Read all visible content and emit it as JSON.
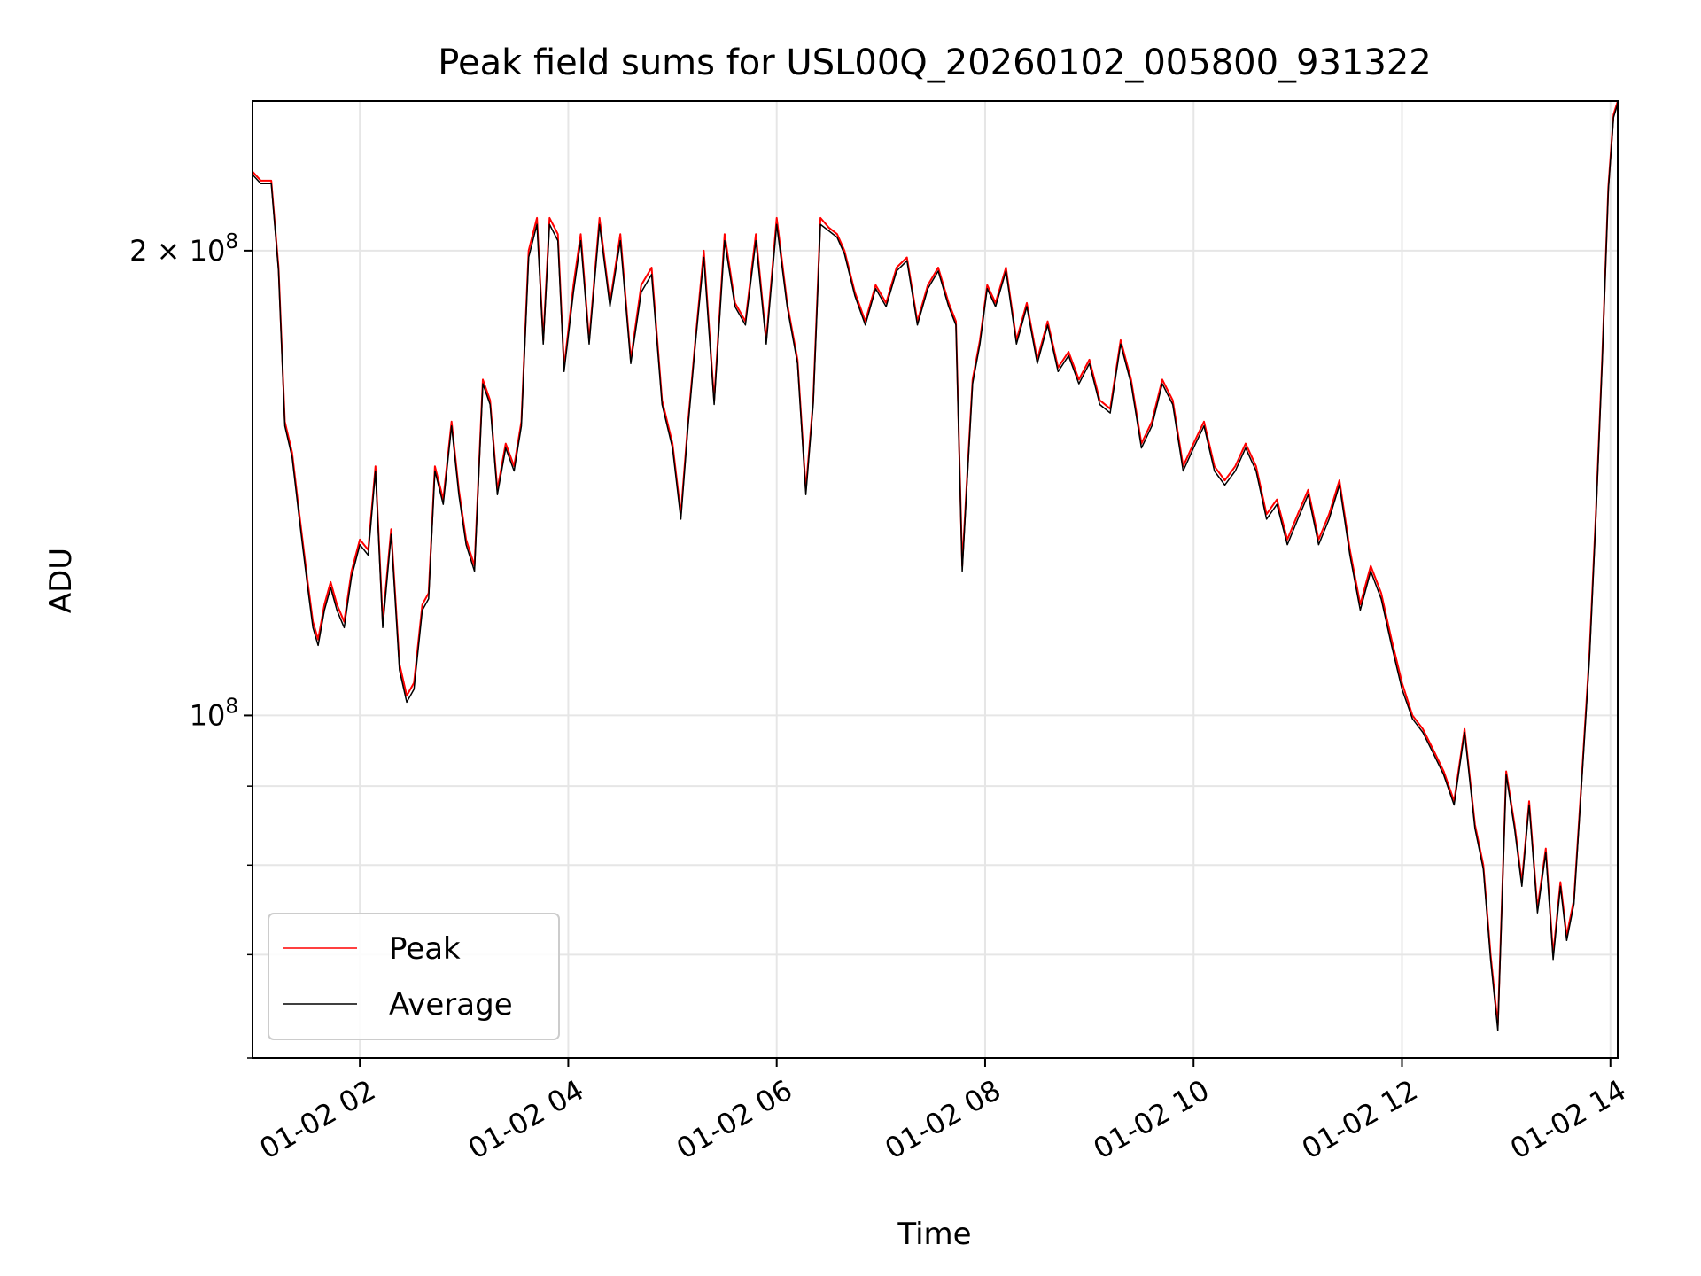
{
  "chart_data": {
    "type": "line",
    "title": "Peak field sums for USL00Q_20260102_005800_931322",
    "xlabel": "Time",
    "ylabel": "ADU",
    "y_scale": "log",
    "x_unit": "hours of 2026-01-02",
    "xlim": [
      0.97,
      14.07
    ],
    "ylim": [
      60000000,
      250000000
    ],
    "x_ticks": [
      {
        "value": 2,
        "label": "01-02 02"
      },
      {
        "value": 4,
        "label": "01-02 04"
      },
      {
        "value": 6,
        "label": "01-02 06"
      },
      {
        "value": 8,
        "label": "01-02 08"
      },
      {
        "value": 10,
        "label": "01-02 10"
      },
      {
        "value": 12,
        "label": "01-02 12"
      },
      {
        "value": 14,
        "label": "01-02 14"
      }
    ],
    "y_major_ticks": [
      {
        "value": 100000000,
        "base": "10",
        "exp": "8"
      },
      {
        "value": 200000000,
        "coef": "2",
        "base": "10",
        "exp": "8"
      }
    ],
    "y_minor_ticks": [
      60000000,
      70000000,
      80000000,
      90000000
    ],
    "grid": true,
    "legend_position": "lower-left",
    "series": [
      {
        "name": "Peak",
        "color": "#ff0000",
        "x": [
          0.97,
          1.05,
          1.15,
          1.22,
          1.28,
          1.35,
          1.42,
          1.5,
          1.55,
          1.6,
          1.66,
          1.72,
          1.78,
          1.85,
          1.92,
          2.0,
          2.08,
          2.15,
          2.22,
          2.3,
          2.38,
          2.45,
          2.52,
          2.6,
          2.66,
          2.72,
          2.8,
          2.88,
          2.95,
          3.02,
          3.1,
          3.18,
          3.25,
          3.32,
          3.4,
          3.48,
          3.55,
          3.62,
          3.7,
          3.76,
          3.82,
          3.9,
          3.96,
          4.05,
          4.12,
          4.2,
          4.3,
          4.4,
          4.5,
          4.6,
          4.7,
          4.8,
          4.9,
          5.0,
          5.08,
          5.15,
          5.22,
          5.3,
          5.4,
          5.5,
          5.6,
          5.7,
          5.8,
          5.9,
          6.0,
          6.1,
          6.2,
          6.28,
          6.35,
          6.42,
          6.5,
          6.58,
          6.65,
          6.75,
          6.85,
          6.95,
          7.05,
          7.15,
          7.25,
          7.35,
          7.45,
          7.55,
          7.65,
          7.72,
          7.78,
          7.82,
          7.88,
          7.95,
          8.02,
          8.1,
          8.2,
          8.3,
          8.4,
          8.5,
          8.6,
          8.7,
          8.8,
          8.9,
          9.0,
          9.1,
          9.2,
          9.3,
          9.4,
          9.5,
          9.6,
          9.7,
          9.8,
          9.9,
          10.0,
          10.1,
          10.2,
          10.3,
          10.4,
          10.5,
          10.6,
          10.7,
          10.8,
          10.9,
          11.0,
          11.1,
          11.2,
          11.3,
          11.4,
          11.5,
          11.6,
          11.7,
          11.8,
          11.9,
          12.0,
          12.1,
          12.2,
          12.3,
          12.4,
          12.5,
          12.6,
          12.7,
          12.78,
          12.85,
          12.92,
          13.0,
          13.08,
          13.15,
          13.22,
          13.3,
          13.38,
          13.45,
          13.52,
          13.58,
          13.65,
          13.72,
          13.8,
          13.86,
          13.92,
          13.98,
          14.03,
          14.07
        ],
        "values": [
          225000000,
          222000000,
          222000000,
          195000000,
          155000000,
          148000000,
          135000000,
          122000000,
          115000000,
          112000000,
          118000000,
          122000000,
          118000000,
          115000000,
          124000000,
          130000000,
          128000000,
          145000000,
          115000000,
          132000000,
          108000000,
          103000000,
          105000000,
          118000000,
          120000000,
          145000000,
          138000000,
          155000000,
          140000000,
          130000000,
          125000000,
          165000000,
          160000000,
          140000000,
          150000000,
          145000000,
          155000000,
          200000000,
          210000000,
          175000000,
          210000000,
          205000000,
          168000000,
          190000000,
          205000000,
          175000000,
          210000000,
          185000000,
          205000000,
          170000000,
          190000000,
          195000000,
          160000000,
          150000000,
          135000000,
          155000000,
          175000000,
          200000000,
          160000000,
          205000000,
          185000000,
          180000000,
          205000000,
          175000000,
          210000000,
          185000000,
          170000000,
          140000000,
          160000000,
          210000000,
          207000000,
          205000000,
          200000000,
          188000000,
          180000000,
          190000000,
          185000000,
          195000000,
          198000000,
          180000000,
          190000000,
          195000000,
          185000000,
          180000000,
          125000000,
          140000000,
          165000000,
          175000000,
          190000000,
          185000000,
          195000000,
          175000000,
          185000000,
          170000000,
          180000000,
          168000000,
          172000000,
          165000000,
          170000000,
          160000000,
          158000000,
          175000000,
          165000000,
          150000000,
          155000000,
          165000000,
          160000000,
          145000000,
          150000000,
          155000000,
          145000000,
          142000000,
          145000000,
          150000000,
          145000000,
          135000000,
          138000000,
          130000000,
          135000000,
          140000000,
          130000000,
          135000000,
          142000000,
          128000000,
          118000000,
          125000000,
          120000000,
          112000000,
          105000000,
          100000000,
          98000000,
          95000000,
          92000000,
          88000000,
          98000000,
          85000000,
          80000000,
          70000000,
          63000000,
          92000000,
          85000000,
          78000000,
          88000000,
          75000000,
          82000000,
          70000000,
          78000000,
          72000000,
          76000000,
          90000000,
          110000000,
          135000000,
          170000000,
          220000000,
          245000000,
          250000000
        ]
      },
      {
        "name": "Average",
        "color": "#000000",
        "x": [
          0.97,
          1.05,
          1.15,
          1.22,
          1.28,
          1.35,
          1.42,
          1.5,
          1.55,
          1.6,
          1.66,
          1.72,
          1.78,
          1.85,
          1.92,
          2.0,
          2.08,
          2.15,
          2.22,
          2.3,
          2.38,
          2.45,
          2.52,
          2.6,
          2.66,
          2.72,
          2.8,
          2.88,
          2.95,
          3.02,
          3.1,
          3.18,
          3.25,
          3.32,
          3.4,
          3.48,
          3.55,
          3.62,
          3.7,
          3.76,
          3.82,
          3.9,
          3.96,
          4.05,
          4.12,
          4.2,
          4.3,
          4.4,
          4.5,
          4.6,
          4.7,
          4.8,
          4.9,
          5.0,
          5.08,
          5.15,
          5.22,
          5.3,
          5.4,
          5.5,
          5.6,
          5.7,
          5.8,
          5.9,
          6.0,
          6.1,
          6.2,
          6.28,
          6.35,
          6.42,
          6.5,
          6.58,
          6.65,
          6.75,
          6.85,
          6.95,
          7.05,
          7.15,
          7.25,
          7.35,
          7.45,
          7.55,
          7.65,
          7.72,
          7.78,
          7.82,
          7.88,
          7.95,
          8.02,
          8.1,
          8.2,
          8.3,
          8.4,
          8.5,
          8.6,
          8.7,
          8.8,
          8.9,
          9.0,
          9.1,
          9.2,
          9.3,
          9.4,
          9.5,
          9.6,
          9.7,
          9.8,
          9.9,
          10.0,
          10.1,
          10.2,
          10.3,
          10.4,
          10.5,
          10.6,
          10.7,
          10.8,
          10.9,
          11.0,
          11.1,
          11.2,
          11.3,
          11.4,
          11.5,
          11.6,
          11.7,
          11.8,
          11.9,
          12.0,
          12.1,
          12.2,
          12.3,
          12.4,
          12.5,
          12.6,
          12.7,
          12.78,
          12.85,
          12.92,
          13.0,
          13.08,
          13.15,
          13.22,
          13.3,
          13.38,
          13.45,
          13.52,
          13.58,
          13.65,
          13.72,
          13.8,
          13.86,
          13.92,
          13.98,
          14.03,
          14.07
        ],
        "values": [
          224000000,
          221000000,
          221000000,
          194000000,
          154000000,
          147000000,
          134000000,
          121000000,
          114000000,
          111000000,
          117000000,
          121000000,
          117000000,
          114000000,
          123000000,
          129000000,
          127000000,
          144000000,
          114000000,
          131000000,
          107000000,
          102000000,
          104000000,
          117000000,
          119000000,
          144000000,
          137000000,
          154000000,
          139000000,
          129000000,
          124000000,
          164000000,
          159000000,
          139000000,
          149000000,
          144000000,
          154000000,
          198000000,
          208000000,
          174000000,
          208000000,
          203000000,
          167000000,
          188000000,
          203000000,
          174000000,
          208000000,
          184000000,
          203000000,
          169000000,
          188000000,
          193000000,
          159000000,
          149000000,
          134000000,
          154000000,
          174000000,
          198000000,
          159000000,
          203000000,
          184000000,
          179000000,
          203000000,
          174000000,
          208000000,
          184000000,
          169000000,
          139000000,
          159000000,
          208000000,
          206000000,
          204000000,
          199000000,
          187000000,
          179000000,
          189000000,
          184000000,
          194000000,
          197000000,
          179000000,
          189000000,
          194000000,
          184000000,
          179000000,
          124000000,
          139000000,
          164000000,
          174000000,
          189000000,
          184000000,
          194000000,
          174000000,
          184000000,
          169000000,
          179000000,
          167000000,
          171000000,
          164000000,
          169000000,
          159000000,
          157000000,
          174000000,
          164000000,
          149000000,
          154000000,
          164000000,
          159000000,
          144000000,
          149000000,
          154000000,
          144000000,
          141000000,
          144000000,
          149000000,
          144000000,
          134000000,
          137000000,
          129000000,
          134000000,
          139000000,
          129000000,
          134000000,
          141000000,
          127000000,
          117000000,
          124000000,
          119000000,
          111000000,
          104000000,
          99500000,
          97500000,
          94500000,
          91500000,
          87500000,
          97500000,
          84500000,
          79500000,
          69500000,
          62500000,
          91500000,
          84500000,
          77500000,
          87500000,
          74500000,
          81500000,
          69500000,
          77500000,
          71500000,
          75500000,
          89500000,
          109000000,
          134000000,
          169000000,
          219000000,
          244000000,
          249000000
        ]
      }
    ]
  }
}
